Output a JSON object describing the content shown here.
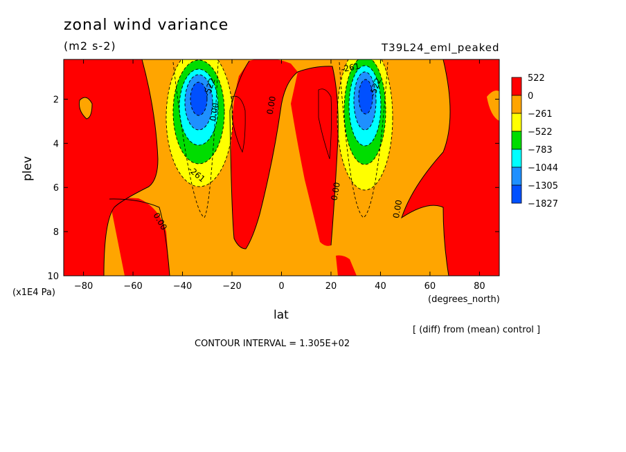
{
  "header": {
    "title": "zonal wind variance",
    "units": "(m2 s-2)",
    "run_label": "T39L24_eml_peaked"
  },
  "footer": {
    "diff_note": "[ (diff) from (mean) control ]",
    "contour_interval": "CONTOUR INTERVAL = 1.305E+02"
  },
  "chart_data": {
    "type": "heatmap",
    "title": "zonal wind variance",
    "subtitle": "(m2 s-2)",
    "xlabel": "lat",
    "xunit": "(degrees_north)",
    "ylabel": "plev",
    "yunit": "(x1E4 Pa)",
    "xlim": [
      -88,
      88
    ],
    "ylim": [
      10,
      0.2
    ],
    "x_ticks": [
      -80,
      -60,
      -40,
      -20,
      0,
      20,
      40,
      60,
      80
    ],
    "y_ticks": [
      2,
      4,
      6,
      8,
      10
    ],
    "colorbar": {
      "labels": [
        "522",
        "0",
        "-261",
        "-522",
        "-783",
        "-1044",
        "-1305",
        "-1827"
      ],
      "colors": [
        "#ff0000",
        "#ffa500",
        "#ffff00",
        "#00dd00",
        "#00ffff",
        "#1e90ff",
        "#0050ff"
      ]
    },
    "contour_labels": [
      {
        "text": "0.00",
        "lat": -50,
        "plev": 7.6,
        "rot": 60
      },
      {
        "text": "-261",
        "lat": -35,
        "plev": 5.5,
        "rot": 40
      },
      {
        "text": "0.00",
        "lat": -26,
        "plev": 2.6,
        "rot": -80
      },
      {
        "text": "-522",
        "lat": -28,
        "plev": 1.5,
        "rot": -70
      },
      {
        "text": "0.00",
        "lat": -3,
        "plev": 2.3,
        "rot": -80
      },
      {
        "text": "-261",
        "lat": 28,
        "plev": 0.7,
        "rot": -10
      },
      {
        "text": "-522",
        "lat": 39,
        "plev": 1.5,
        "rot": -70
      },
      {
        "text": "0.00",
        "lat": 23,
        "plev": 6.2,
        "rot": -80
      },
      {
        "text": "0.00",
        "lat": 48,
        "plev": 7.0,
        "rot": -80
      }
    ]
  }
}
